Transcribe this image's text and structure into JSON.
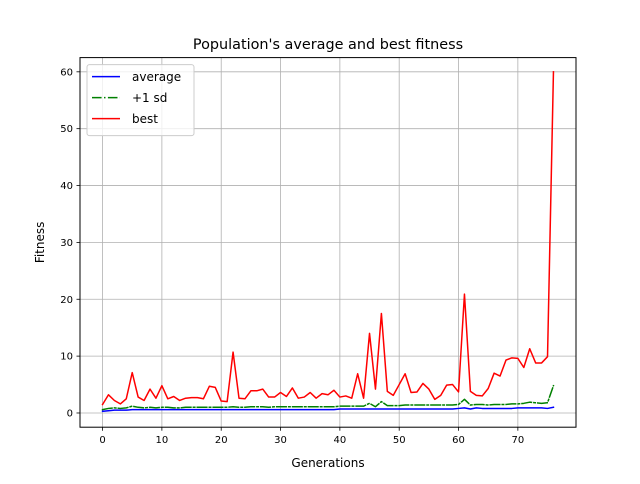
{
  "chart_data": {
    "type": "line",
    "title": "Population's average and best fitness",
    "xlabel": "Generations",
    "ylabel": "Fitness",
    "xlim": [
      -3.8,
      79.8
    ],
    "ylim": [
      -2.5,
      62.5
    ],
    "xticks": [
      0,
      10,
      20,
      30,
      40,
      50,
      60,
      70
    ],
    "yticks": [
      0,
      10,
      20,
      30,
      40,
      50,
      60
    ],
    "grid": true,
    "legend_position": "top-left",
    "series": [
      {
        "name": "average",
        "color": "#0000ff",
        "dash": "solid",
        "x": [
          0,
          1,
          2,
          3,
          4,
          5,
          6,
          7,
          8,
          9,
          10,
          11,
          12,
          13,
          14,
          15,
          16,
          17,
          18,
          19,
          20,
          21,
          22,
          23,
          24,
          25,
          26,
          27,
          28,
          29,
          30,
          31,
          32,
          33,
          34,
          35,
          36,
          37,
          38,
          39,
          40,
          41,
          42,
          43,
          44,
          45,
          46,
          47,
          48,
          49,
          50,
          51,
          52,
          53,
          54,
          55,
          56,
          57,
          58,
          59,
          60,
          61,
          62,
          63,
          64,
          65,
          66,
          67,
          68,
          69,
          70,
          71,
          72,
          73,
          74,
          75,
          76
        ],
        "values": [
          0.3,
          0.4,
          0.5,
          0.5,
          0.5,
          0.6,
          0.6,
          0.6,
          0.6,
          0.6,
          0.6,
          0.6,
          0.6,
          0.6,
          0.6,
          0.6,
          0.6,
          0.6,
          0.6,
          0.6,
          0.6,
          0.6,
          0.6,
          0.6,
          0.6,
          0.6,
          0.6,
          0.6,
          0.6,
          0.6,
          0.6,
          0.6,
          0.6,
          0.6,
          0.6,
          0.6,
          0.6,
          0.6,
          0.6,
          0.6,
          0.7,
          0.7,
          0.7,
          0.7,
          0.7,
          0.7,
          0.7,
          0.7,
          0.7,
          0.7,
          0.7,
          0.7,
          0.7,
          0.7,
          0.7,
          0.7,
          0.7,
          0.7,
          0.7,
          0.7,
          0.8,
          0.9,
          0.7,
          0.9,
          0.8,
          0.8,
          0.8,
          0.8,
          0.8,
          0.8,
          0.9,
          0.9,
          0.9,
          0.9,
          0.9,
          0.8,
          1.0
        ]
      },
      {
        "name": "+1 sd",
        "color": "#008000",
        "dash": "dashdot",
        "x": [
          0,
          1,
          2,
          3,
          4,
          5,
          6,
          7,
          8,
          9,
          10,
          11,
          12,
          13,
          14,
          15,
          16,
          17,
          18,
          19,
          20,
          21,
          22,
          23,
          24,
          25,
          26,
          27,
          28,
          29,
          30,
          31,
          32,
          33,
          34,
          35,
          36,
          37,
          38,
          39,
          40,
          41,
          42,
          43,
          44,
          45,
          46,
          47,
          48,
          49,
          50,
          51,
          52,
          53,
          54,
          55,
          56,
          57,
          58,
          59,
          60,
          61,
          62,
          63,
          64,
          65,
          66,
          67,
          68,
          69,
          70,
          71,
          72,
          73,
          74,
          75,
          76
        ],
        "values": [
          0.6,
          0.8,
          0.9,
          0.8,
          0.9,
          1.2,
          1.0,
          0.9,
          1.0,
          0.9,
          1.0,
          1.0,
          0.9,
          0.9,
          1.0,
          1.0,
          1.0,
          1.0,
          1.0,
          1.0,
          1.0,
          1.0,
          1.1,
          1.0,
          1.0,
          1.1,
          1.1,
          1.1,
          1.0,
          1.1,
          1.1,
          1.1,
          1.1,
          1.1,
          1.1,
          1.1,
          1.1,
          1.1,
          1.1,
          1.1,
          1.2,
          1.2,
          1.2,
          1.2,
          1.2,
          1.7,
          1.1,
          2.0,
          1.3,
          1.3,
          1.3,
          1.4,
          1.4,
          1.4,
          1.4,
          1.4,
          1.4,
          1.4,
          1.4,
          1.4,
          1.5,
          2.4,
          1.4,
          1.5,
          1.5,
          1.4,
          1.5,
          1.5,
          1.5,
          1.6,
          1.6,
          1.7,
          1.9,
          1.8,
          1.7,
          1.8,
          4.8
        ]
      },
      {
        "name": "best",
        "color": "#ff0000",
        "dash": "solid",
        "x": [
          0,
          1,
          2,
          3,
          4,
          5,
          6,
          7,
          8,
          9,
          10,
          11,
          12,
          13,
          14,
          15,
          16,
          17,
          18,
          19,
          20,
          21,
          22,
          23,
          24,
          25,
          26,
          27,
          28,
          29,
          30,
          31,
          32,
          33,
          34,
          35,
          36,
          37,
          38,
          39,
          40,
          41,
          42,
          43,
          44,
          45,
          46,
          47,
          48,
          49,
          50,
          51,
          52,
          53,
          54,
          55,
          56,
          57,
          58,
          59,
          60,
          61,
          62,
          63,
          64,
          65,
          66,
          67,
          68,
          69,
          70,
          71,
          72,
          73,
          74,
          75,
          76
        ],
        "values": [
          1.5,
          3.2,
          2.2,
          1.6,
          2.5,
          7.1,
          2.8,
          2.2,
          4.2,
          2.6,
          4.8,
          2.5,
          2.9,
          2.2,
          2.6,
          2.7,
          2.7,
          2.5,
          4.7,
          4.5,
          2.1,
          2.0,
          10.7,
          2.6,
          2.5,
          3.9,
          3.9,
          4.2,
          2.8,
          2.8,
          3.6,
          2.9,
          4.4,
          2.6,
          2.8,
          3.6,
          2.6,
          3.4,
          3.2,
          4.0,
          2.8,
          3.0,
          2.6,
          6.9,
          2.6,
          14.0,
          4.2,
          17.5,
          3.8,
          3.1,
          5.0,
          6.9,
          3.6,
          3.7,
          5.2,
          4.2,
          2.4,
          3.1,
          4.9,
          5.0,
          3.7,
          20.9,
          3.8,
          3.1,
          3.0,
          4.3,
          7.0,
          6.5,
          9.3,
          9.7,
          9.6,
          8.0,
          11.3,
          8.8,
          8.8,
          9.9,
          60.0
        ]
      }
    ]
  }
}
